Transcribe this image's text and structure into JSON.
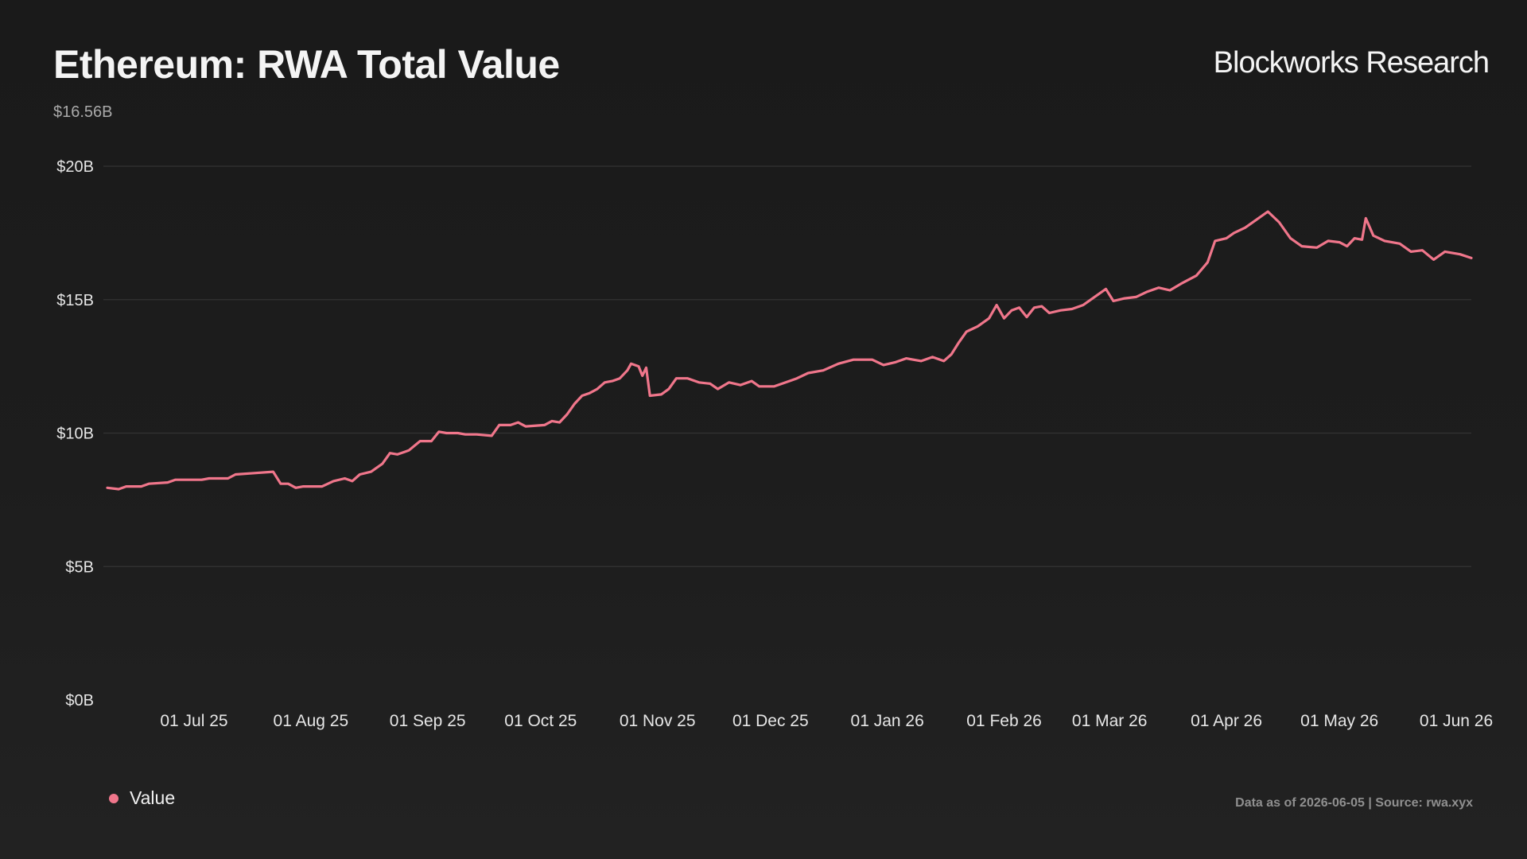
{
  "header": {
    "title": "Ethereum: RWA Total Value",
    "subtitle": "$16.56B",
    "brand": "Blockworks Research"
  },
  "footer": {
    "source_note": "Data as of 2026-06-05 | Source: rwa.xyx"
  },
  "colors": {
    "series": "#f0768b",
    "grid": "#333333",
    "background": "#1b1b1b"
  },
  "chart_data": {
    "type": "line",
    "title": "Ethereum: RWA Total Value",
    "subtitle": "$16.56B",
    "xlabel": "",
    "ylabel": "",
    "x_range": [
      "2025-06-08",
      "2026-06-05"
    ],
    "ylim": [
      0,
      20
    ],
    "y_unit": "billions USD",
    "y_ticks": [
      {
        "value": 0,
        "label": "$0B"
      },
      {
        "value": 5,
        "label": "$5B"
      },
      {
        "value": 10,
        "label": "$10B"
      },
      {
        "value": 15,
        "label": "$15B"
      },
      {
        "value": 20,
        "label": "$20B"
      }
    ],
    "x_ticks": [
      {
        "date": "2025-07-01",
        "label": "01 Jul 25"
      },
      {
        "date": "2025-08-01",
        "label": "01 Aug 25"
      },
      {
        "date": "2025-09-01",
        "label": "01 Sep 25"
      },
      {
        "date": "2025-10-01",
        "label": "01 Oct 25"
      },
      {
        "date": "2025-11-01",
        "label": "01 Nov 25"
      },
      {
        "date": "2025-12-01",
        "label": "01 Dec 25"
      },
      {
        "date": "2026-01-01",
        "label": "01 Jan 26"
      },
      {
        "date": "2026-02-01",
        "label": "01 Feb 26"
      },
      {
        "date": "2026-03-01",
        "label": "01 Mar 26"
      },
      {
        "date": "2026-04-01",
        "label": "01 Apr 26"
      },
      {
        "date": "2026-05-01",
        "label": "01 May 26"
      },
      {
        "date": "2026-06-01",
        "label": "01 Jun 26"
      }
    ],
    "grid": true,
    "legend": {
      "position": "bottom-left",
      "entries": [
        "Value"
      ]
    },
    "series": [
      {
        "name": "Value",
        "color": "#f0768b",
        "points": [
          [
            "2025-06-08",
            7.95
          ],
          [
            "2025-06-11",
            7.9
          ],
          [
            "2025-06-13",
            8.0
          ],
          [
            "2025-06-17",
            8.0
          ],
          [
            "2025-06-19",
            8.1
          ],
          [
            "2025-06-24",
            8.15
          ],
          [
            "2025-06-26",
            8.25
          ],
          [
            "2025-07-03",
            8.25
          ],
          [
            "2025-07-05",
            8.3
          ],
          [
            "2025-07-10",
            8.3
          ],
          [
            "2025-07-12",
            8.45
          ],
          [
            "2025-07-17",
            8.5
          ],
          [
            "2025-07-22",
            8.55
          ],
          [
            "2025-07-24",
            8.1
          ],
          [
            "2025-07-26",
            8.1
          ],
          [
            "2025-07-28",
            7.95
          ],
          [
            "2025-07-30",
            8.0
          ],
          [
            "2025-08-04",
            8.0
          ],
          [
            "2025-08-07",
            8.2
          ],
          [
            "2025-08-10",
            8.3
          ],
          [
            "2025-08-12",
            8.2
          ],
          [
            "2025-08-14",
            8.45
          ],
          [
            "2025-08-17",
            8.55
          ],
          [
            "2025-08-20",
            8.85
          ],
          [
            "2025-08-22",
            9.25
          ],
          [
            "2025-08-24",
            9.2
          ],
          [
            "2025-08-27",
            9.35
          ],
          [
            "2025-08-30",
            9.7
          ],
          [
            "2025-09-02",
            9.7
          ],
          [
            "2025-09-04",
            10.05
          ],
          [
            "2025-09-06",
            10.0
          ],
          [
            "2025-09-09",
            10.0
          ],
          [
            "2025-09-11",
            9.95
          ],
          [
            "2025-09-14",
            9.95
          ],
          [
            "2025-09-18",
            9.9
          ],
          [
            "2025-09-20",
            10.3
          ],
          [
            "2025-09-23",
            10.3
          ],
          [
            "2025-09-25",
            10.4
          ],
          [
            "2025-09-27",
            10.25
          ],
          [
            "2025-10-02",
            10.3
          ],
          [
            "2025-10-04",
            10.45
          ],
          [
            "2025-10-06",
            10.4
          ],
          [
            "2025-10-08",
            10.7
          ],
          [
            "2025-10-10",
            11.1
          ],
          [
            "2025-10-12",
            11.4
          ],
          [
            "2025-10-14",
            11.5
          ],
          [
            "2025-10-16",
            11.65
          ],
          [
            "2025-10-18",
            11.9
          ],
          [
            "2025-10-20",
            11.95
          ],
          [
            "2025-10-22",
            12.05
          ],
          [
            "2025-10-24",
            12.35
          ],
          [
            "2025-10-25",
            12.6
          ],
          [
            "2025-10-27",
            12.5
          ],
          [
            "2025-10-28",
            12.15
          ],
          [
            "2025-10-29",
            12.45
          ],
          [
            "2025-10-30",
            11.4
          ],
          [
            "2025-11-02",
            11.45
          ],
          [
            "2025-11-04",
            11.65
          ],
          [
            "2025-11-06",
            12.05
          ],
          [
            "2025-11-09",
            12.05
          ],
          [
            "2025-11-12",
            11.9
          ],
          [
            "2025-11-15",
            11.85
          ],
          [
            "2025-11-17",
            11.65
          ],
          [
            "2025-11-20",
            11.9
          ],
          [
            "2025-11-23",
            11.8
          ],
          [
            "2025-11-26",
            11.95
          ],
          [
            "2025-11-28",
            11.75
          ],
          [
            "2025-12-02",
            11.75
          ],
          [
            "2025-12-06",
            11.95
          ],
          [
            "2025-12-08",
            12.05
          ],
          [
            "2025-12-11",
            12.25
          ],
          [
            "2025-12-15",
            12.35
          ],
          [
            "2025-12-19",
            12.6
          ],
          [
            "2025-12-23",
            12.75
          ],
          [
            "2025-12-28",
            12.75
          ],
          [
            "2025-12-31",
            12.55
          ],
          [
            "2026-01-03",
            12.65
          ],
          [
            "2026-01-06",
            12.8
          ],
          [
            "2026-01-10",
            12.7
          ],
          [
            "2026-01-13",
            12.85
          ],
          [
            "2026-01-16",
            12.7
          ],
          [
            "2026-01-18",
            12.95
          ],
          [
            "2026-01-20",
            13.4
          ],
          [
            "2026-01-22",
            13.8
          ],
          [
            "2026-01-25",
            14.0
          ],
          [
            "2026-01-28",
            14.3
          ],
          [
            "2026-01-30",
            14.8
          ],
          [
            "2026-02-01",
            14.3
          ],
          [
            "2026-02-03",
            14.6
          ],
          [
            "2026-02-05",
            14.7
          ],
          [
            "2026-02-07",
            14.35
          ],
          [
            "2026-02-09",
            14.7
          ],
          [
            "2026-02-11",
            14.75
          ],
          [
            "2026-02-13",
            14.5
          ],
          [
            "2026-02-16",
            14.6
          ],
          [
            "2026-02-19",
            14.65
          ],
          [
            "2026-02-22",
            14.8
          ],
          [
            "2026-02-25",
            15.1
          ],
          [
            "2026-02-28",
            15.4
          ],
          [
            "2026-03-02",
            14.95
          ],
          [
            "2026-03-05",
            15.05
          ],
          [
            "2026-03-08",
            15.1
          ],
          [
            "2026-03-11",
            15.3
          ],
          [
            "2026-03-14",
            15.45
          ],
          [
            "2026-03-17",
            15.35
          ],
          [
            "2026-03-20",
            15.6
          ],
          [
            "2026-03-24",
            15.9
          ],
          [
            "2026-03-27",
            16.4
          ],
          [
            "2026-03-29",
            17.2
          ],
          [
            "2026-04-01",
            17.3
          ],
          [
            "2026-04-03",
            17.5
          ],
          [
            "2026-04-06",
            17.7
          ],
          [
            "2026-04-09",
            18.0
          ],
          [
            "2026-04-12",
            18.3
          ],
          [
            "2026-04-15",
            17.9
          ],
          [
            "2026-04-18",
            17.3
          ],
          [
            "2026-04-21",
            17.0
          ],
          [
            "2026-04-25",
            16.95
          ],
          [
            "2026-04-28",
            17.2
          ],
          [
            "2026-05-01",
            17.15
          ],
          [
            "2026-05-03",
            17.0
          ],
          [
            "2026-05-05",
            17.3
          ],
          [
            "2026-05-07",
            17.25
          ],
          [
            "2026-05-08",
            18.05
          ],
          [
            "2026-05-10",
            17.4
          ],
          [
            "2026-05-13",
            17.2
          ],
          [
            "2026-05-17",
            17.1
          ],
          [
            "2026-05-20",
            16.8
          ],
          [
            "2026-05-23",
            16.85
          ],
          [
            "2026-05-26",
            16.5
          ],
          [
            "2026-05-29",
            16.8
          ],
          [
            "2026-06-02",
            16.7
          ],
          [
            "2026-06-05",
            16.56
          ]
        ]
      }
    ]
  }
}
